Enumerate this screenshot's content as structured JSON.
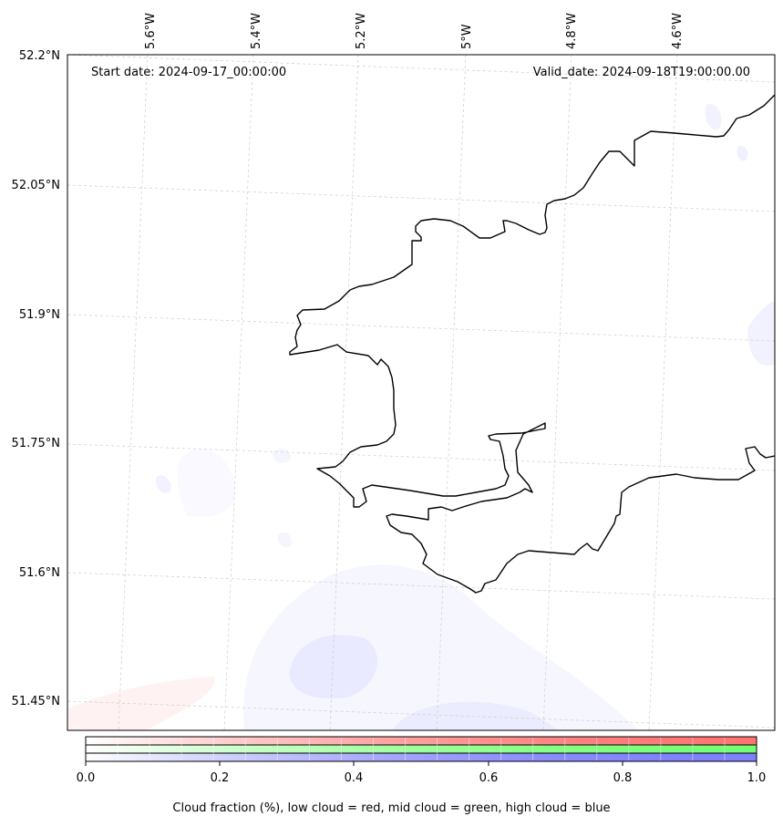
{
  "map": {
    "start_label": "Start date: 2024-09-17_00:00:00",
    "valid_label": "Valid_date: 2024-09-18T19:00:00.00",
    "lon_labels": [
      "5.6°W",
      "5.4°W",
      "5.2°W",
      "5°W",
      "4.8°W",
      "4.6°W"
    ],
    "lat_labels": [
      "52.2°N",
      "52.05°N",
      "51.9°N",
      "51.75°N",
      "51.6°N",
      "51.45°N"
    ],
    "coastline_color": "#000000",
    "gridline_color": "#cccccc"
  },
  "colorbar": {
    "ticks": [
      "0.0",
      "0.2",
      "0.4",
      "0.6",
      "0.8",
      "1.0"
    ],
    "caption": "Cloud fraction (%), low cloud = red, mid cloud = green, high cloud = blue",
    "low_color": "#ff0000",
    "mid_color": "#00ff00",
    "high_color": "#0000ff"
  }
}
